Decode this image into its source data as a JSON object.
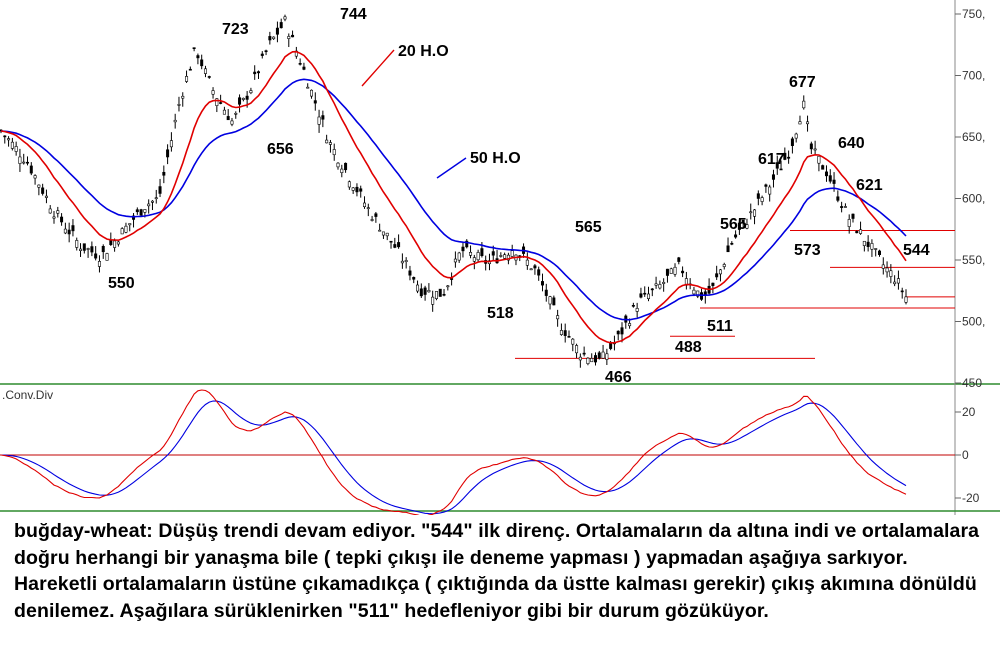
{
  "chart_data": [
    {
      "type": "candlestick",
      "instrument": "buğday-wheat",
      "ylim": [
        450,
        760
      ],
      "yticks": [
        450,
        500,
        550,
        600,
        650,
        700,
        750
      ],
      "ytick_labels": [
        "450",
        "500,",
        "550,",
        "600,",
        "650,",
        "700,",
        "750,"
      ],
      "colors": {
        "price": "#000000",
        "ma20": "#e00000",
        "ma50": "#0000e0",
        "levels": "#e00000"
      },
      "moving_average_labels": [
        "20 H.O",
        "50 H.O"
      ],
      "price_labels": [
        "550",
        "723",
        "744",
        "656",
        "518",
        "565",
        "466",
        "488",
        "511",
        "565",
        "617",
        "677",
        "640",
        "573",
        "621",
        "544"
      ],
      "horizontal_levels": [
        574,
        544,
        520,
        511,
        488,
        470
      ]
    },
    {
      "type": "line",
      "title": ".Conv.Div",
      "ylim": [
        -25,
        28
      ],
      "yticks": [
        20,
        0,
        -20
      ],
      "ytick_labels": [
        "20",
        "0",
        "-20"
      ],
      "zero_line": true,
      "series": [
        {
          "color": "#e00000"
        },
        {
          "color": "#0000e0"
        }
      ]
    }
  ],
  "caption": "buğday-wheat: Düşüş trendi devam ediyor. \"544\" ilk direnç. Ortalamaların da altına indi ve ortalamalara doğru herhangi bir yanaşma bile ( tepki çıkışı ile deneme yapması ) yapmadan aşağıya sarkıyor. Hareketli ortalamaların üstüne çıkamadıkça ( çıktığında da üstte kalması gerekir) çıkış akımına dönüldü denilemez. Aşağılara sürüklenirken  \"511\" hedefleniyor gibi bir durum gözüküyor."
}
